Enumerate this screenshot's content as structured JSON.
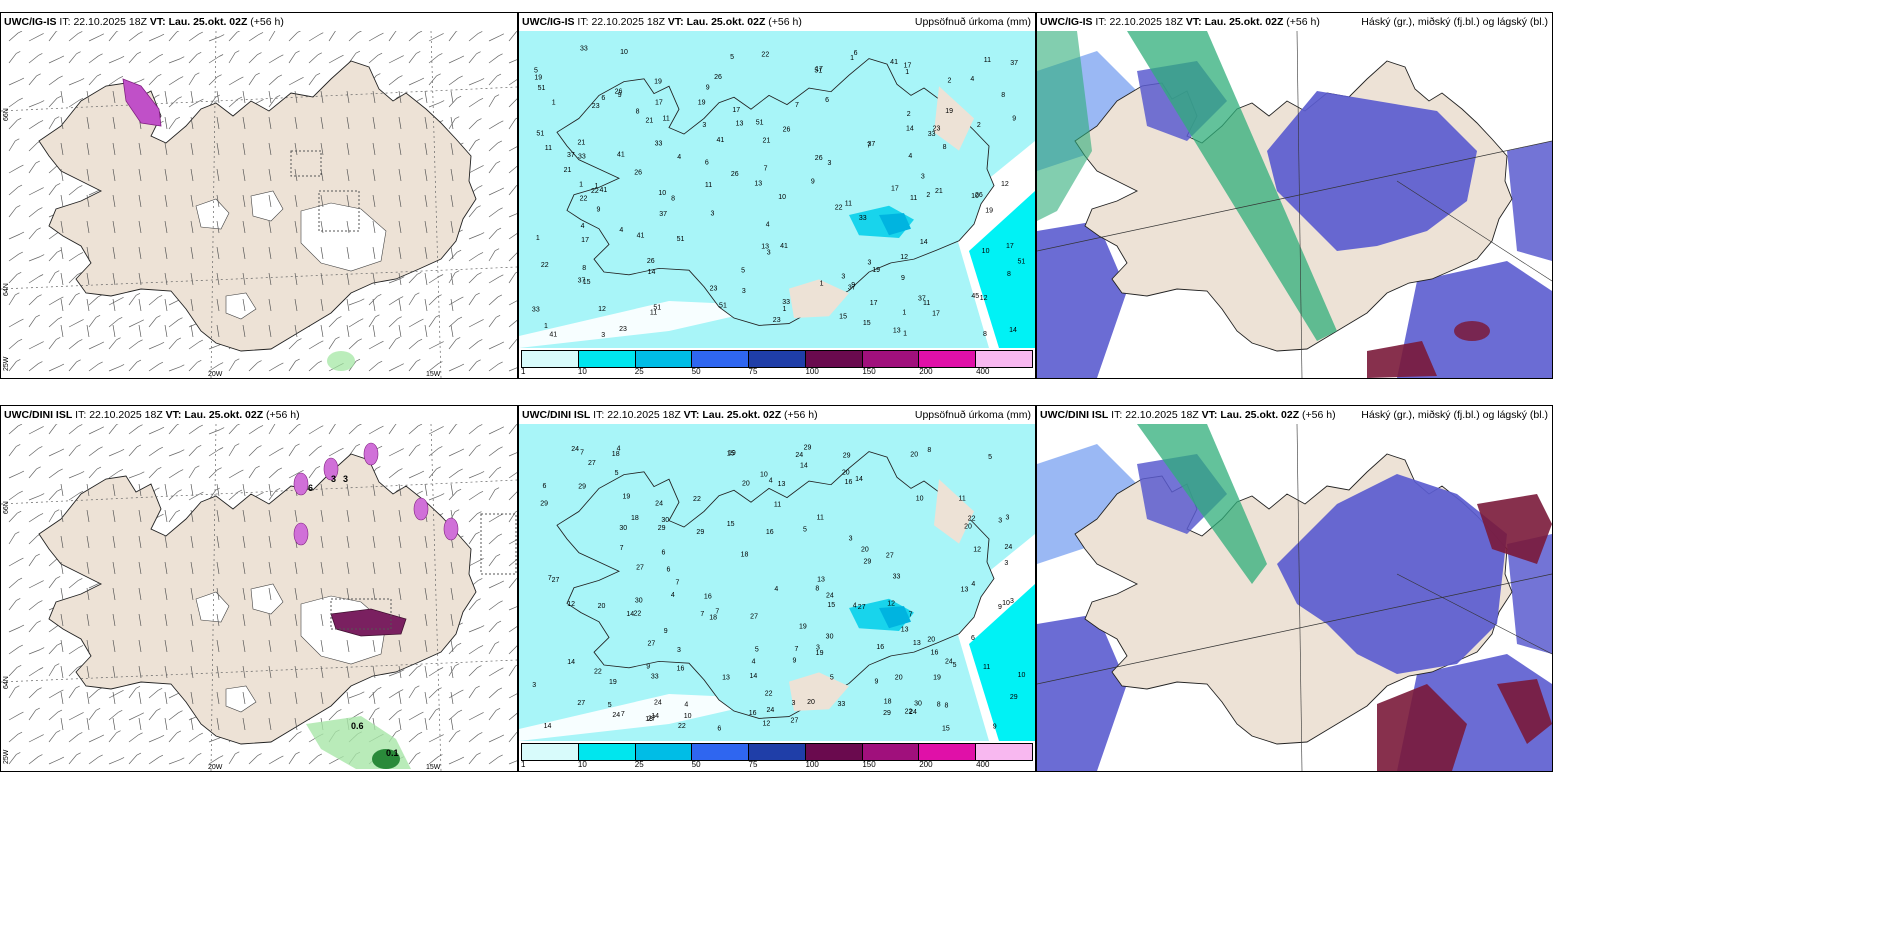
{
  "rows": [
    {
      "model": "UWC/IG-IS",
      "it_label": "IT:",
      "it_value": "22.10.2025 18Z",
      "vt_label": "VT:",
      "vt_value": "Lau. 25.okt. 02Z",
      "lead": "(+56 h)"
    },
    {
      "model": "UWC/DINI ISL",
      "it_label": "IT:",
      "it_value": "22.10.2025 18Z",
      "vt_label": "VT:",
      "vt_value": "Lau. 25.okt. 02Z",
      "lead": "(+56 h)"
    }
  ],
  "panel_titles": {
    "wind": "",
    "precip": "Uppsöfnuð úrkoma (mm)",
    "cloud": "Háský (gr.), miðský (fj.bl.) og lágský (bl.)"
  },
  "axis_labels": {
    "lat_66": "66N",
    "lat_64": "64N",
    "lat_63": "25W",
    "lon_20": "20W",
    "lon_15": "15W"
  },
  "precip_legend": {
    "ticks": [
      "1",
      "10",
      "25",
      "50",
      "75",
      "100",
      "150",
      "200",
      "400"
    ],
    "colors": [
      "#d8fbfb",
      "#00e6ee",
      "#00bde6",
      "#2f66f0",
      "#1f3ea8",
      "#6a0a4e",
      "#a0107c",
      "#e010a8",
      "#f8b8f0"
    ]
  },
  "precip_values_top": [
    "3",
    "5",
    "6",
    "7",
    "9",
    "12",
    "13",
    "14",
    "15",
    "17",
    "19",
    "22",
    "33",
    "45",
    "37",
    "10",
    "11",
    "8",
    "4",
    "2",
    "1",
    "21",
    "41",
    "23",
    "26",
    "51"
  ],
  "precip_values_bottom": [
    "3",
    "4",
    "5",
    "6",
    "7",
    "8",
    "9",
    "10",
    "11",
    "12",
    "13",
    "14",
    "15",
    "16",
    "18",
    "19",
    "20",
    "22",
    "24",
    "27",
    "29",
    "30",
    "33"
  ],
  "wind_labels_bottom": [
    "6",
    "3",
    "3",
    "0.6",
    "0.1"
  ],
  "colors": {
    "land": "#ede2d6",
    "precip_sea": "#a8f5f8",
    "cloud_low": "#5b5ccf",
    "cloud_mid": "#6f9af0",
    "cloud_high": "#2fae7a",
    "cloud_dark": "#7a1a3a"
  }
}
